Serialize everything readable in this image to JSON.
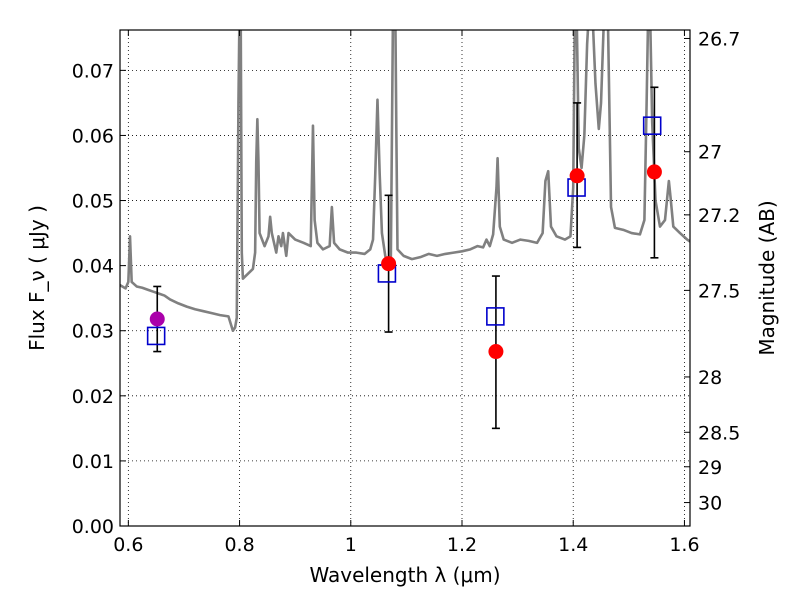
{
  "chart_data": {
    "type": "scatter",
    "xlabel": "Wavelength  λ (μm)",
    "ylabel": "Flux  F_ν  ( μJy )",
    "ylabel_right": "Magnitude (AB)",
    "xlim": [
      0.585,
      1.61
    ],
    "ylim": [
      0.0,
      0.0762
    ],
    "grid": true,
    "x_ticks": [
      0.6,
      0.8,
      1.0,
      1.2,
      1.4,
      1.6
    ],
    "x_tick_labels": [
      "0.6",
      "0.8",
      "1",
      "1.2",
      "1.4",
      "1.6"
    ],
    "y_ticks": [
      0.0,
      0.01,
      0.02,
      0.03,
      0.04,
      0.05,
      0.06,
      0.07
    ],
    "y_tick_labels": [
      "0.00",
      "0.01",
      "0.02",
      "0.03",
      "0.04",
      "0.05",
      "0.06",
      "0.07"
    ],
    "right_ticks": [
      {
        "label": "26.7",
        "flux": 0.0749
      },
      {
        "label": "27",
        "flux": 0.0575
      },
      {
        "label": "27.2",
        "flux": 0.0478
      },
      {
        "label": "27.5",
        "flux": 0.0362
      },
      {
        "label": "28",
        "flux": 0.0229
      },
      {
        "label": "28.5",
        "flux": 0.0144
      },
      {
        "label": "29",
        "flux": 0.0091
      },
      {
        "label": "30",
        "flux": 0.0036
      }
    ],
    "colors": {
      "spectrum": "#808080",
      "measured": "#ff0000",
      "measured_first": "#aa00aa",
      "model": "#0000cc",
      "errorbar": "#000000"
    },
    "spectrum": [
      [
        0.585,
        0.037
      ],
      [
        0.595,
        0.0365
      ],
      [
        0.6,
        0.0375
      ],
      [
        0.603,
        0.0445
      ],
      [
        0.606,
        0.0375
      ],
      [
        0.615,
        0.0368
      ],
      [
        0.625,
        0.0366
      ],
      [
        0.635,
        0.0363
      ],
      [
        0.645,
        0.036
      ],
      [
        0.655,
        0.0357
      ],
      [
        0.665,
        0.0354
      ],
      [
        0.675,
        0.0348
      ],
      [
        0.69,
        0.0342
      ],
      [
        0.705,
        0.0337
      ],
      [
        0.72,
        0.0333
      ],
      [
        0.735,
        0.033
      ],
      [
        0.75,
        0.0327
      ],
      [
        0.765,
        0.0324
      ],
      [
        0.78,
        0.0322
      ],
      [
        0.788,
        0.03
      ],
      [
        0.792,
        0.0305
      ],
      [
        0.795,
        0.032
      ],
      [
        0.798,
        0.065
      ],
      [
        0.8,
        0.08
      ],
      [
        0.802,
        0.08
      ],
      [
        0.804,
        0.042
      ],
      [
        0.806,
        0.038
      ],
      [
        0.812,
        0.0385
      ],
      [
        0.818,
        0.039
      ],
      [
        0.824,
        0.0395
      ],
      [
        0.828,
        0.042
      ],
      [
        0.83,
        0.056
      ],
      [
        0.832,
        0.0625
      ],
      [
        0.834,
        0.056
      ],
      [
        0.836,
        0.045
      ],
      [
        0.845,
        0.043
      ],
      [
        0.852,
        0.0445
      ],
      [
        0.855,
        0.0475
      ],
      [
        0.858,
        0.045
      ],
      [
        0.866,
        0.042
      ],
      [
        0.87,
        0.0445
      ],
      [
        0.875,
        0.043
      ],
      [
        0.878,
        0.045
      ],
      [
        0.884,
        0.0415
      ],
      [
        0.888,
        0.045
      ],
      [
        0.9,
        0.044
      ],
      [
        0.915,
        0.0435
      ],
      [
        0.928,
        0.043
      ],
      [
        0.932,
        0.0615
      ],
      [
        0.935,
        0.047
      ],
      [
        0.94,
        0.0435
      ],
      [
        0.95,
        0.0425
      ],
      [
        0.962,
        0.043
      ],
      [
        0.966,
        0.049
      ],
      [
        0.97,
        0.0435
      ],
      [
        0.98,
        0.0425
      ],
      [
        0.995,
        0.042
      ],
      [
        1.01,
        0.042
      ],
      [
        1.025,
        0.0418
      ],
      [
        1.035,
        0.0425
      ],
      [
        1.04,
        0.044
      ],
      [
        1.044,
        0.054
      ],
      [
        1.048,
        0.0655
      ],
      [
        1.052,
        0.054
      ],
      [
        1.056,
        0.045
      ],
      [
        1.062,
        0.0415
      ],
      [
        1.068,
        0.04
      ],
      [
        1.072,
        0.0405
      ],
      [
        1.074,
        0.06
      ],
      [
        1.076,
        0.08
      ],
      [
        1.08,
        0.08
      ],
      [
        1.082,
        0.06
      ],
      [
        1.084,
        0.0425
      ],
      [
        1.095,
        0.0415
      ],
      [
        1.11,
        0.041
      ],
      [
        1.125,
        0.0413
      ],
      [
        1.14,
        0.0418
      ],
      [
        1.155,
        0.0415
      ],
      [
        1.17,
        0.0418
      ],
      [
        1.185,
        0.042
      ],
      [
        1.2,
        0.0422
      ],
      [
        1.215,
        0.0425
      ],
      [
        1.228,
        0.043
      ],
      [
        1.238,
        0.0428
      ],
      [
        1.244,
        0.044
      ],
      [
        1.25,
        0.043
      ],
      [
        1.256,
        0.0448
      ],
      [
        1.262,
        0.052
      ],
      [
        1.264,
        0.0565
      ],
      [
        1.268,
        0.046
      ],
      [
        1.275,
        0.044
      ],
      [
        1.29,
        0.0435
      ],
      [
        1.305,
        0.044
      ],
      [
        1.32,
        0.0438
      ],
      [
        1.335,
        0.0435
      ],
      [
        1.345,
        0.045
      ],
      [
        1.35,
        0.053
      ],
      [
        1.355,
        0.0545
      ],
      [
        1.36,
        0.046
      ],
      [
        1.37,
        0.0445
      ],
      [
        1.385,
        0.044
      ],
      [
        1.395,
        0.0445
      ],
      [
        1.4,
        0.052
      ],
      [
        1.403,
        0.08
      ],
      [
        1.406,
        0.08
      ],
      [
        1.41,
        0.058
      ],
      [
        1.415,
        0.055
      ],
      [
        1.42,
        0.06
      ],
      [
        1.425,
        0.074
      ],
      [
        1.429,
        0.08
      ],
      [
        1.434,
        0.08
      ],
      [
        1.44,
        0.068
      ],
      [
        1.446,
        0.061
      ],
      [
        1.45,
        0.065
      ],
      [
        1.456,
        0.08
      ],
      [
        1.462,
        0.08
      ],
      [
        1.468,
        0.049
      ],
      [
        1.475,
        0.0458
      ],
      [
        1.49,
        0.0455
      ],
      [
        1.505,
        0.045
      ],
      [
        1.52,
        0.0448
      ],
      [
        1.528,
        0.047
      ],
      [
        1.532,
        0.065
      ],
      [
        1.535,
        0.08
      ],
      [
        1.538,
        0.08
      ],
      [
        1.542,
        0.062
      ],
      [
        1.548,
        0.05
      ],
      [
        1.556,
        0.046
      ],
      [
        1.565,
        0.047
      ],
      [
        1.572,
        0.053
      ],
      [
        1.575,
        0.0505
      ],
      [
        1.58,
        0.046
      ],
      [
        1.592,
        0.045
      ],
      [
        1.605,
        0.044
      ],
      [
        1.61,
        0.0437
      ]
    ],
    "measured_points": [
      {
        "x": 0.652,
        "y": 0.0318,
        "y_low": 0.0268,
        "y_high": 0.0368
      },
      {
        "x": 1.068,
        "y": 0.0403,
        "y_low": 0.0298,
        "y_high": 0.0508
      },
      {
        "x": 1.261,
        "y": 0.0268,
        "y_low": 0.015,
        "y_high": 0.0384
      },
      {
        "x": 1.407,
        "y": 0.0538,
        "y_low": 0.0428,
        "y_high": 0.065
      },
      {
        "x": 1.546,
        "y": 0.0544,
        "y_low": 0.0412,
        "y_high": 0.0674
      }
    ],
    "model_points": [
      {
        "x": 0.65,
        "y": 0.0292
      },
      {
        "x": 1.065,
        "y": 0.0388
      },
      {
        "x": 1.26,
        "y": 0.0322
      },
      {
        "x": 1.406,
        "y": 0.052
      },
      {
        "x": 1.542,
        "y": 0.0615
      }
    ]
  }
}
